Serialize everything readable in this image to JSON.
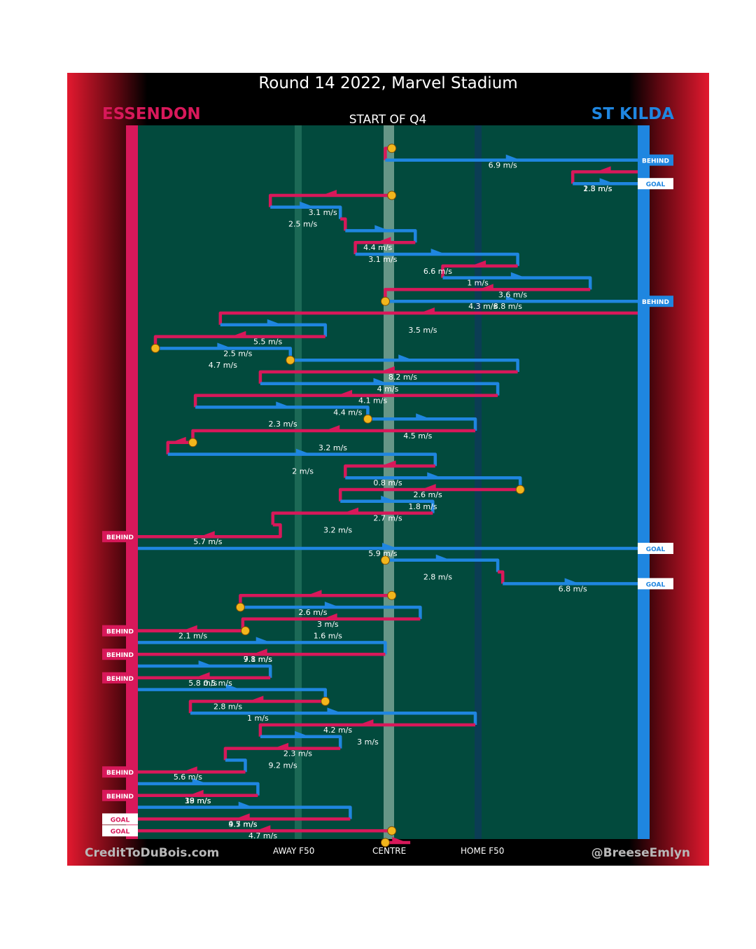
{
  "title": "Round 14 2022, Marvel Stadium",
  "period": "START OF Q4",
  "teams": {
    "home": "ESSENDON",
    "away": "ST KILDA"
  },
  "colors": {
    "home": "#d8185a",
    "away": "#1f86e0",
    "ground": "#024a3d",
    "frame_edge": "#e3192f",
    "marker": "#f2b61c"
  },
  "footer": {
    "left_credit": "CreditToDuBois.com",
    "right_credit": "@BreeseEmlyn",
    "labels": [
      "AWAY F50",
      "CENTRE",
      "HOME F50"
    ]
  },
  "chart_data": {
    "type": "line",
    "title": "Round 14 2022, Marvel Stadium",
    "subtitle": "START OF Q4",
    "xlabel": "",
    "ylabel": "",
    "x_axis_ticks": [
      "AWAY F50",
      "CENTRE",
      "HOME F50"
    ],
    "legend": [
      "ESSENDON",
      "ST KILDA"
    ],
    "units": "x = position along ground (0 = Essendon end, 100 = St Kilda end), y = chain order from start of Q4",
    "chains": [
      {
        "team": "home",
        "path": [
          [
            50.8,
            1.0
          ],
          [
            49.5,
            1.0
          ],
          [
            49.5,
            2.0
          ]
        ],
        "start_marker": true
      },
      {
        "team": "away",
        "path": [
          [
            49.5,
            2.0
          ],
          [
            100,
            2.0
          ]
        ],
        "speed": "6.9 m/s",
        "label_x": 73,
        "end_badge": "BEHIND"
      },
      {
        "team": "home",
        "path": [
          [
            100,
            3.0
          ],
          [
            87,
            3.0
          ],
          [
            87,
            4.0
          ]
        ],
        "speed": "2.8 m/s",
        "label_x": 92
      },
      {
        "team": "away",
        "path": [
          [
            87,
            4.0
          ],
          [
            100,
            4.0
          ]
        ],
        "speed": "1.3 m/s",
        "label_x": 92,
        "end_badge": "GOAL"
      },
      {
        "team": "home",
        "path": [
          [
            50.8,
            5.0
          ],
          [
            26.5,
            5.0
          ],
          [
            26.5,
            6.0
          ]
        ],
        "speed": "3.1 m/s",
        "label_x": 37,
        "start_marker": true
      },
      {
        "team": "away",
        "path": [
          [
            26.5,
            6.0
          ],
          [
            40.5,
            6.0
          ],
          [
            40.5,
            7.0
          ]
        ],
        "speed": "2.5 m/s",
        "label_x": 33
      },
      {
        "team": "home",
        "path": [
          [
            40.5,
            7.0
          ],
          [
            41.5,
            7.0
          ],
          [
            41.5,
            8.0
          ]
        ]
      },
      {
        "team": "away",
        "path": [
          [
            41.5,
            8.0
          ],
          [
            55.5,
            8.0
          ],
          [
            55.5,
            9.0
          ]
        ],
        "speed": "4.4 m/s",
        "label_x": 48
      },
      {
        "team": "home",
        "path": [
          [
            55.5,
            9.0
          ],
          [
            43.5,
            9.0
          ],
          [
            43.5,
            10.0
          ]
        ],
        "speed": "3.1 m/s",
        "label_x": 49
      },
      {
        "team": "away",
        "path": [
          [
            43.5,
            10.0
          ],
          [
            76,
            10.0
          ],
          [
            76,
            11.0
          ]
        ],
        "speed": "6.6 m/s",
        "label_x": 60
      },
      {
        "team": "home",
        "path": [
          [
            76,
            11.0
          ],
          [
            61,
            11.0
          ],
          [
            61,
            12.0
          ]
        ],
        "speed": "1 m/s",
        "label_x": 68
      },
      {
        "team": "away",
        "path": [
          [
            61,
            12.0
          ],
          [
            90.5,
            12.0
          ],
          [
            90.5,
            13.0
          ]
        ],
        "speed": "3.6 m/s",
        "label_x": 75
      },
      {
        "team": "home",
        "path": [
          [
            90.5,
            13.0
          ],
          [
            49.5,
            13.0
          ],
          [
            49.5,
            14.0
          ]
        ],
        "speed": "4.3 m/s",
        "label_x": 69
      },
      {
        "team": "away",
        "path": [
          [
            49.5,
            14.0
          ],
          [
            100,
            14.0
          ]
        ],
        "speed": "8.8 m/s",
        "label_x": 74,
        "end_badge": "BEHIND",
        "start_marker": true
      },
      {
        "team": "home",
        "path": [
          [
            100,
            15.0
          ],
          [
            16.5,
            15.0
          ],
          [
            16.5,
            16.0
          ]
        ],
        "speed": "3.5 m/s",
        "label_x": 57
      },
      {
        "team": "away",
        "path": [
          [
            16.5,
            16.0
          ],
          [
            37.5,
            16.0
          ],
          [
            37.5,
            17.0
          ]
        ],
        "speed": "5.5 m/s",
        "label_x": 26
      },
      {
        "team": "home",
        "path": [
          [
            37.5,
            17.0
          ],
          [
            3.5,
            17.0
          ],
          [
            3.5,
            18.0
          ]
        ],
        "speed": "2.5 m/s",
        "label_x": 20
      },
      {
        "team": "away",
        "path": [
          [
            3.5,
            18.0
          ],
          [
            30.5,
            18.0
          ],
          [
            30.5,
            19.0
          ]
        ],
        "speed": "4.7 m/s",
        "label_x": 17,
        "start_marker": true
      },
      {
        "team": "away",
        "path": [
          [
            30.5,
            19.0
          ],
          [
            76,
            19.0
          ],
          [
            76,
            20.0
          ]
        ],
        "speed": "8.2 m/s",
        "label_x": 53,
        "start_marker": true
      },
      {
        "team": "home",
        "path": [
          [
            76,
            20.0
          ],
          [
            24.5,
            20.0
          ],
          [
            24.5,
            21.0
          ]
        ],
        "speed": "4 m/s",
        "label_x": 50
      },
      {
        "team": "away",
        "path": [
          [
            24.5,
            21.0
          ],
          [
            72,
            21.0
          ],
          [
            72,
            22.0
          ]
        ],
        "speed": "4.1 m/s",
        "label_x": 47
      },
      {
        "team": "home",
        "path": [
          [
            72,
            22.0
          ],
          [
            11.5,
            22.0
          ],
          [
            11.5,
            23.0
          ]
        ],
        "speed": "4.4 m/s",
        "label_x": 42
      },
      {
        "team": "away",
        "path": [
          [
            11.5,
            23.0
          ],
          [
            46,
            23.0
          ],
          [
            46,
            24.0
          ]
        ],
        "speed": "2.3 m/s",
        "label_x": 29
      },
      {
        "team": "away",
        "path": [
          [
            46,
            24.0
          ],
          [
            67.5,
            24.0
          ],
          [
            67.5,
            25.0
          ]
        ],
        "speed": "4.5 m/s",
        "label_x": 56,
        "start_marker": true
      },
      {
        "team": "home",
        "path": [
          [
            67.5,
            25.0
          ],
          [
            11,
            25.0
          ],
          [
            11,
            26.0
          ]
        ],
        "speed": "3.2 m/s",
        "label_x": 39
      },
      {
        "team": "home",
        "path": [
          [
            11,
            26.0
          ],
          [
            6,
            26.0
          ],
          [
            6,
            27.0
          ]
        ],
        "start_marker": true
      },
      {
        "team": "away",
        "path": [
          [
            6,
            27.0
          ],
          [
            59.5,
            27.0
          ],
          [
            59.5,
            28.0
          ]
        ],
        "speed": "2 m/s",
        "label_x": 33
      },
      {
        "team": "home",
        "path": [
          [
            59.5,
            28.0
          ],
          [
            41.5,
            28.0
          ],
          [
            41.5,
            29.0
          ]
        ],
        "speed": "0.8 m/s",
        "label_x": 50
      },
      {
        "team": "away",
        "path": [
          [
            41.5,
            29.0
          ],
          [
            76.5,
            29.0
          ],
          [
            76.5,
            30.0
          ]
        ],
        "speed": "2.6 m/s",
        "label_x": 58
      },
      {
        "team": "home",
        "path": [
          [
            76.5,
            30.0
          ],
          [
            40.5,
            30.0
          ],
          [
            40.5,
            31.0
          ]
        ],
        "speed": "1.8 m/s",
        "label_x": 57,
        "start_marker": true
      },
      {
        "team": "away",
        "path": [
          [
            40.5,
            31.0
          ],
          [
            59,
            31.0
          ],
          [
            59,
            32.0
          ]
        ],
        "speed": "2.7 m/s",
        "label_x": 50
      },
      {
        "team": "home",
        "path": [
          [
            59,
            32.0
          ],
          [
            27,
            32.0
          ],
          [
            27,
            33.0
          ]
        ],
        "speed": "3.2 m/s",
        "label_x": 40
      },
      {
        "team": "home",
        "path": [
          [
            27,
            33.0
          ],
          [
            28.5,
            33.0
          ],
          [
            28.5,
            34.0
          ],
          [
            0,
            34.0
          ]
        ],
        "speed": "5.7 m/s",
        "label_x": 14,
        "end_badge": "BEHIND"
      },
      {
        "team": "away",
        "path": [
          [
            0,
            35.0
          ],
          [
            100,
            35.0
          ]
        ],
        "speed": "5.9 m/s",
        "label_x": 49,
        "end_badge": "GOAL"
      },
      {
        "team": "away",
        "path": [
          [
            49.5,
            36.0
          ],
          [
            72,
            36.0
          ],
          [
            72,
            37.0
          ]
        ],
        "speed": "2.8 m/s",
        "label_x": 60,
        "start_marker": true
      },
      {
        "team": "home",
        "path": [
          [
            72,
            37.0
          ],
          [
            73,
            37.0
          ],
          [
            73,
            38.0
          ]
        ]
      },
      {
        "team": "away",
        "path": [
          [
            73,
            38.0
          ],
          [
            100,
            38.0
          ]
        ],
        "speed": "6.8 m/s",
        "label_x": 87,
        "end_badge": "GOAL"
      },
      {
        "team": "home",
        "path": [
          [
            50.8,
            39.0
          ],
          [
            20.5,
            39.0
          ],
          [
            20.5,
            40.0
          ]
        ],
        "speed": "2.6 m/s",
        "label_x": 35,
        "start_marker": true
      },
      {
        "team": "away",
        "path": [
          [
            20.5,
            40.0
          ],
          [
            56.5,
            40.0
          ],
          [
            56.5,
            41.0
          ]
        ],
        "speed": "3 m/s",
        "label_x": 38,
        "start_marker": true
      },
      {
        "team": "home",
        "path": [
          [
            56.5,
            41.0
          ],
          [
            21,
            41.0
          ],
          [
            21,
            42.0
          ],
          [
            0,
            42.0
          ]
        ],
        "speed": "1.6 m/s",
        "label_x": 38,
        "end_badge": "BEHIND"
      },
      {
        "team": "home",
        "path": [
          [
            21.5,
            42.0
          ],
          [
            0,
            42.0
          ]
        ],
        "speed": "2.1 m/s",
        "label_x": 11,
        "start_marker": true
      },
      {
        "team": "away",
        "path": [
          [
            0,
            43.0
          ],
          [
            49.5,
            43.0
          ],
          [
            49.5,
            44.0
          ]
        ],
        "speed": "7.1 m/s",
        "label_x": 24
      },
      {
        "team": "home",
        "path": [
          [
            49.5,
            44.0
          ],
          [
            0,
            44.0
          ]
        ],
        "speed": "9.8 m/s",
        "label_x": 24,
        "end_badge": "BEHIND"
      },
      {
        "team": "away",
        "path": [
          [
            0,
            45.0
          ],
          [
            26.5,
            45.0
          ],
          [
            26.5,
            46.0
          ]
        ],
        "speed": "5.8 m/s",
        "label_x": 13
      },
      {
        "team": "home",
        "path": [
          [
            26.5,
            46.0
          ],
          [
            0,
            46.0
          ]
        ],
        "speed": "0.5 m/s",
        "label_x": 16,
        "end_badge": "BEHIND"
      },
      {
        "team": "away",
        "path": [
          [
            0,
            47.0
          ],
          [
            37.5,
            47.0
          ],
          [
            37.5,
            48.0
          ]
        ],
        "speed": "2.8 m/s",
        "label_x": 18
      },
      {
        "team": "home",
        "path": [
          [
            37.5,
            48.0
          ],
          [
            10.5,
            48.0
          ],
          [
            10.5,
            49.0
          ]
        ],
        "speed": "1 m/s",
        "label_x": 24,
        "start_marker": true
      },
      {
        "team": "away",
        "path": [
          [
            10.5,
            49.0
          ],
          [
            67.5,
            49.0
          ],
          [
            67.5,
            50.0
          ]
        ],
        "speed": "4.2 m/s",
        "label_x": 40
      },
      {
        "team": "home",
        "path": [
          [
            67.5,
            50.0
          ],
          [
            24.5,
            50.0
          ],
          [
            24.5,
            51.0
          ]
        ],
        "speed": "3 m/s",
        "label_x": 46
      },
      {
        "team": "away",
        "path": [
          [
            24.5,
            51.0
          ],
          [
            40.5,
            51.0
          ],
          [
            40.5,
            52.0
          ]
        ],
        "speed": "2.3 m/s",
        "label_x": 32
      },
      {
        "team": "home",
        "path": [
          [
            40.5,
            52.0
          ],
          [
            17.5,
            52.0
          ],
          [
            17.5,
            53.0
          ]
        ],
        "speed": "9.2 m/s",
        "label_x": 29
      },
      {
        "team": "away",
        "path": [
          [
            17.5,
            53.0
          ],
          [
            21.5,
            53.0
          ],
          [
            21.5,
            54.0
          ]
        ]
      },
      {
        "team": "home",
        "path": [
          [
            21.5,
            54.0
          ],
          [
            0,
            54.0
          ]
        ],
        "speed": "5.6 m/s",
        "label_x": 10,
        "end_badge": "BEHIND"
      },
      {
        "team": "away",
        "path": [
          [
            0,
            55.0
          ],
          [
            24,
            55.0
          ],
          [
            24,
            56.0
          ]
        ],
        "speed": "19 m/s",
        "label_x": 12
      },
      {
        "team": "home",
        "path": [
          [
            24,
            56.0
          ],
          [
            0,
            56.0
          ]
        ],
        "speed": "38 m/s",
        "label_x": 12,
        "end_badge": "BEHIND"
      },
      {
        "team": "away",
        "path": [
          [
            0,
            57.0
          ],
          [
            42.5,
            57.0
          ],
          [
            42.5,
            58.0
          ]
        ],
        "speed": "9.7 m/s",
        "label_x": 21
      },
      {
        "team": "home",
        "path": [
          [
            42.5,
            58.0
          ],
          [
            0,
            58.0
          ]
        ],
        "speed": "4.5 m/s",
        "label_x": 21,
        "end_badge": "GOAL"
      },
      {
        "team": "home",
        "path": [
          [
            50.8,
            59.0
          ],
          [
            0,
            59.0
          ]
        ],
        "speed": "4.7 m/s",
        "label_x": 25,
        "end_badge": "GOAL",
        "start_marker": true
      },
      {
        "team": "home",
        "path": [
          [
            49.5,
            60.0
          ],
          [
            54.5,
            60.0
          ]
        ],
        "start_marker": true
      }
    ]
  }
}
